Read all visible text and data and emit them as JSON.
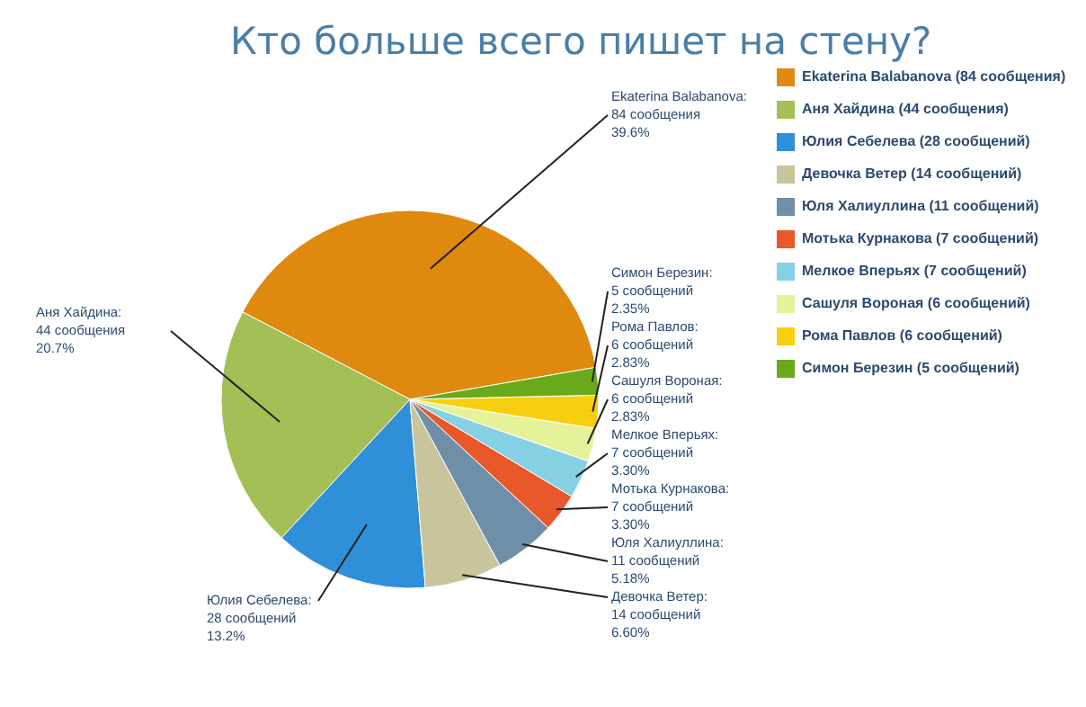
{
  "chart_data": {
    "type": "pie",
    "title": "Кто больше всего пишет на стену?",
    "categories": [
      "Ekaterina Balabanova (84 сообщения)",
      "Аня Хайдина (44 сообщения)",
      "Юлия Себелева (28 сообщений)",
      "Девочка Ветер (14 сообщений)",
      "Юля Халиуллина (11 сообщений)",
      "Мотька Курнакова (7 сообщений)",
      "Мелкое Вперьях (7 сообщений)",
      "Сашуля Вороная (6 сообщений)",
      "Рома Павлов (6 сообщений)",
      "Симон Березин (5 сообщений)"
    ],
    "values": [
      84,
      44,
      28,
      14,
      11,
      7,
      7,
      6,
      6,
      5
    ],
    "colors": [
      "#e0890f",
      "#a3bf55",
      "#2f8fd8",
      "#c8c49c",
      "#6f8fa8",
      "#e8582a",
      "#86d0e4",
      "#e6f29a",
      "#f7cf0f",
      "#6aaa1a"
    ],
    "value_labels": [
      "Ekaterina Balabanova:\n84 сообщения\n39.6%",
      "Аня Хайдина:\n44 сообщения\n20.7%",
      "Юлия Себелева:\n28 сообщений\n13.2%",
      "Девочка Ветер:\n14 сообщений\n6.60%",
      "Юля Халиуллина:\n11 сообщений\n5.18%",
      "Мотька Курнакова:\n7 сообщений\n3.30%",
      "Мелкое Вперьях:\n7 сообщений\n3.30%",
      "Сашуля Вороная:\n6 сообщений\n2.83%",
      "Рома Павлов:\n6 сообщений\n2.83%",
      "Симон Березин:\n5 сообщений\n2.35%"
    ],
    "legend": "top right"
  }
}
